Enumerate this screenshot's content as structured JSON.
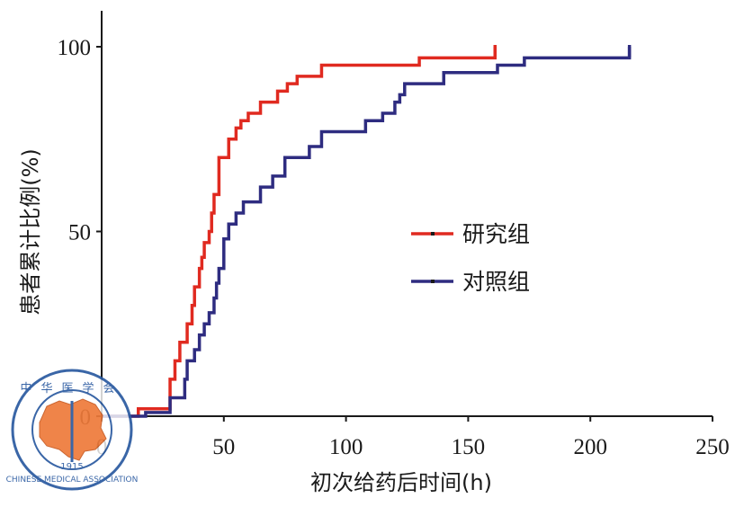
{
  "chart_data": {
    "type": "line",
    "step": true,
    "xlabel": "初次给药后时间(h)",
    "ylabel": "患者累计比例(%)",
    "xlim": [
      0,
      250
    ],
    "ylim": [
      0,
      100
    ],
    "xticks": [
      "0",
      "50",
      "100",
      "150",
      "200",
      "250"
    ],
    "yticks": [
      "0",
      "50",
      "100"
    ],
    "grid": false,
    "legend_position": "right-middle",
    "series": [
      {
        "name": "研究组",
        "color": "#e02a20",
        "x": [
          0,
          15,
          18,
          28,
          30,
          32,
          35,
          37,
          38,
          40,
          41,
          42,
          44,
          45,
          46,
          48,
          52,
          55,
          57,
          60,
          65,
          72,
          76,
          80,
          90,
          130,
          161
        ],
        "y": [
          0,
          2,
          2,
          10,
          15,
          20,
          25,
          30,
          35,
          40,
          43,
          47,
          50,
          55,
          60,
          70,
          75,
          78,
          80,
          82,
          85,
          88,
          90,
          92,
          95,
          97,
          100
        ]
      },
      {
        "name": "对照组",
        "color": "#2e2c80",
        "x": [
          0,
          18,
          28,
          34,
          35,
          38,
          40,
          42,
          44,
          46,
          47,
          48,
          50,
          52,
          55,
          58,
          65,
          70,
          75,
          85,
          90,
          108,
          115,
          120,
          122,
          124,
          128,
          140,
          162,
          173,
          216
        ],
        "y": [
          0,
          1,
          5,
          10,
          15,
          18,
          22,
          25,
          28,
          32,
          36,
          40,
          48,
          52,
          55,
          58,
          62,
          65,
          70,
          73,
          77,
          80,
          82,
          85,
          87,
          90,
          90,
          93,
          95,
          97,
          100
        ]
      }
    ]
  },
  "watermark": {
    "text_top": "中华医学会",
    "text_bottom": "CHINESE MEDICAL ASSOCIATION",
    "year": "1915"
  }
}
